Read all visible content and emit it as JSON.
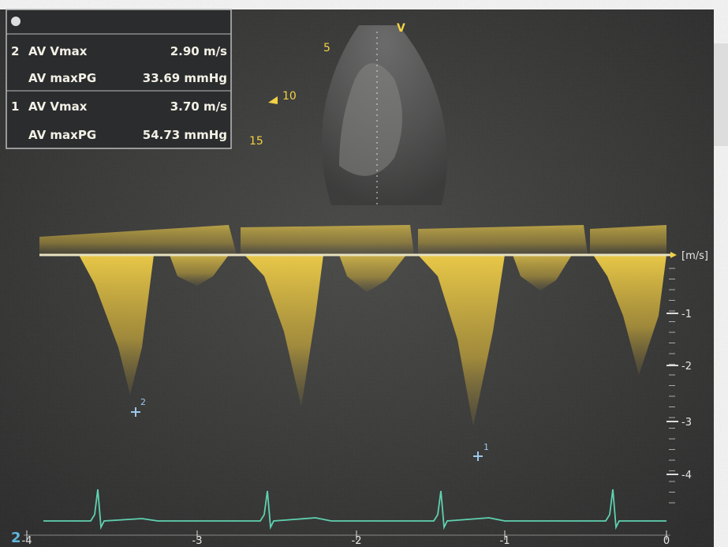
{
  "measurements": [
    {
      "index": "2",
      "label": "AV Vmax",
      "value": "2.90 m/s"
    },
    {
      "label": "AV maxPG",
      "value": "33.69 mmHg"
    },
    {
      "index": "1",
      "label": "AV Vmax",
      "value": "3.70 m/s"
    },
    {
      "label": "AV maxPG",
      "value": "54.73 mmHg"
    }
  ],
  "sector": {
    "label": "V",
    "depths": [
      "5",
      "10",
      "15"
    ]
  },
  "velocity_scale": {
    "unit": "[m/s]",
    "ticks": [
      "-1",
      "-2",
      "-3",
      "-4"
    ]
  },
  "time_axis": {
    "ticks": [
      "-4",
      "-3",
      "-2",
      "-1",
      "0"
    ]
  },
  "ecg_lead": "2",
  "cursors": [
    "2",
    "1"
  ]
}
